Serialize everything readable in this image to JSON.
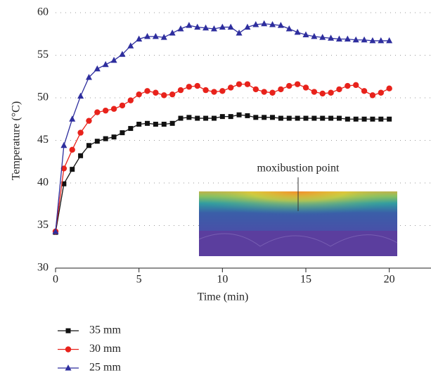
{
  "chart_data": {
    "type": "line",
    "x_label": "Time (min)",
    "y_label": "Temperature (°C)",
    "annotation": "moxibustion point",
    "x": [
      0,
      0.5,
      1,
      1.5,
      2,
      2.5,
      3,
      3.5,
      4,
      4.5,
      5,
      5.5,
      6,
      6.5,
      7,
      7.5,
      8,
      8.5,
      9,
      9.5,
      10,
      10.5,
      11,
      11.5,
      12,
      12.5,
      13,
      13.5,
      14,
      14.5,
      15,
      15.5,
      16,
      16.5,
      17,
      17.5,
      18,
      18.5,
      19,
      19.5,
      20
    ],
    "series": [
      {
        "name": "35 mm",
        "color": "#111111",
        "marker": "square",
        "values": [
          34.2,
          39.9,
          41.6,
          43.2,
          44.4,
          44.9,
          45.2,
          45.4,
          45.9,
          46.4,
          46.9,
          47.0,
          46.9,
          46.9,
          47.0,
          47.6,
          47.7,
          47.6,
          47.6,
          47.6,
          47.8,
          47.8,
          48.0,
          47.9,
          47.7,
          47.7,
          47.7,
          47.6,
          47.6,
          47.6,
          47.6,
          47.6,
          47.6,
          47.6,
          47.6,
          47.5,
          47.5,
          47.5,
          47.5,
          47.5,
          47.5
        ]
      },
      {
        "name": "30 mm",
        "color": "#e8221b",
        "marker": "circle",
        "values": [
          34.3,
          41.7,
          43.9,
          45.9,
          47.3,
          48.3,
          48.5,
          48.7,
          49.1,
          49.7,
          50.4,
          50.8,
          50.6,
          50.3,
          50.4,
          50.9,
          51.3,
          51.4,
          50.9,
          50.7,
          50.8,
          51.2,
          51.6,
          51.6,
          51.0,
          50.7,
          50.6,
          51.0,
          51.4,
          51.6,
          51.2,
          50.7,
          50.5,
          50.6,
          51.0,
          51.4,
          51.5,
          50.8,
          50.3,
          50.6,
          51.1
        ]
      },
      {
        "name": "25 mm",
        "color": "#2e2e9e",
        "marker": "triangle",
        "values": [
          34.3,
          44.4,
          47.5,
          50.2,
          52.4,
          53.4,
          53.9,
          54.4,
          55.1,
          56.1,
          56.9,
          57.2,
          57.2,
          57.1,
          57.6,
          58.1,
          58.5,
          58.3,
          58.2,
          58.1,
          58.3,
          58.3,
          57.6,
          58.3,
          58.6,
          58.7,
          58.6,
          58.5,
          58.1,
          57.7,
          57.4,
          57.2,
          57.1,
          57.0,
          56.9,
          56.9,
          56.8,
          56.8,
          56.7,
          56.7,
          56.7
        ]
      }
    ],
    "xlim": [
      0,
      22.5
    ],
    "xticks": [
      0,
      5,
      10,
      15,
      20
    ],
    "ylim": [
      30,
      60
    ],
    "yticks": [
      30,
      35,
      40,
      45,
      50,
      55,
      60
    ],
    "grid": true
  }
}
